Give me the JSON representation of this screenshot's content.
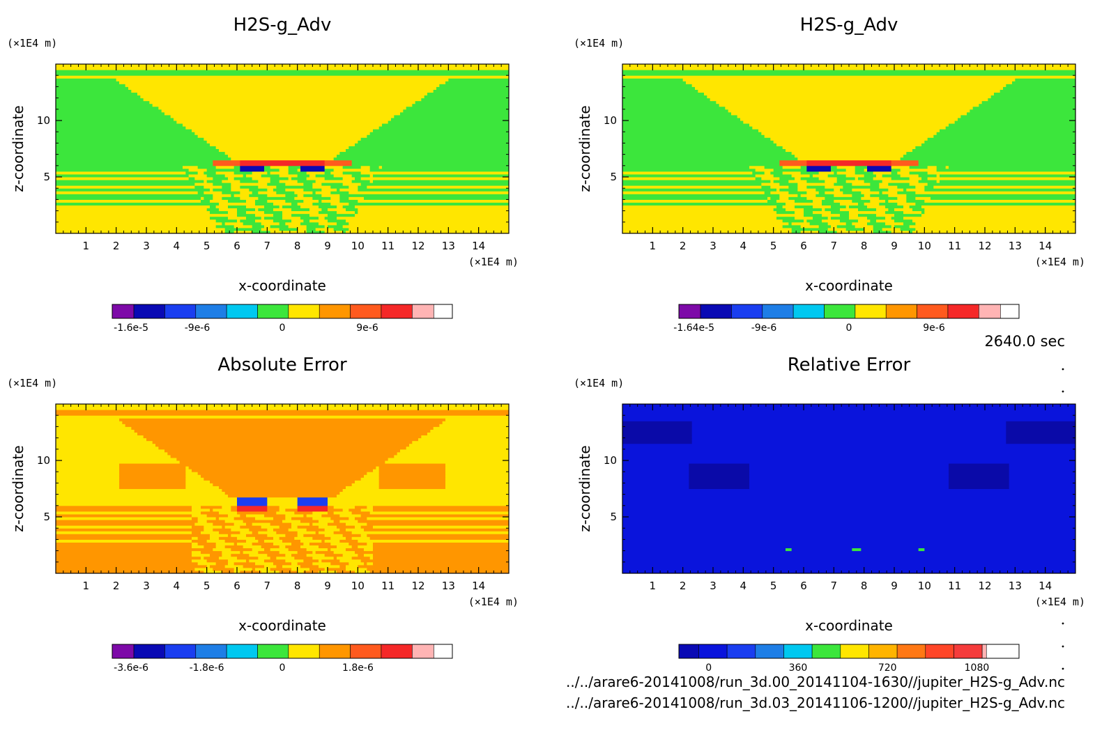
{
  "chart_data": [
    {
      "type": "heatmap",
      "title": "H2S-g_Adv",
      "xlabel": "x-coordinate",
      "ylabel": "z-coordinate",
      "x_unit": "(×1E4 m)",
      "y_unit": "(×1E4 m)",
      "xlim": [
        0,
        15
      ],
      "ylim": [
        0,
        15
      ],
      "xticks": [
        1,
        2,
        3,
        4,
        5,
        6,
        7,
        8,
        9,
        10,
        11,
        12,
        13,
        14
      ],
      "yticks": [
        5,
        10
      ],
      "colorbar": {
        "colors": [
          "#7d0aa8",
          "#0a0ab4",
          "#1a3ef0",
          "#1e7ee6",
          "#00c8f0",
          "#3ce63c",
          "#ffe600",
          "#ff9600",
          "#ff5a1e",
          "#f52828",
          "#ffb4b4"
        ],
        "ticks": [
          {
            "value": -1.6e-05,
            "label": "-1.6e-5"
          },
          {
            "value": -9e-06,
            "label": "-9e-6"
          },
          {
            "value": 0,
            "label": "0"
          },
          {
            "value": 9e-06,
            "label": "9e-6"
          }
        ],
        "range": [
          -1.8e-05,
          1.8e-05
        ]
      },
      "scheme": "field"
    },
    {
      "type": "heatmap",
      "title": "H2S-g_Adv",
      "xlabel": "x-coordinate",
      "ylabel": "z-coordinate",
      "x_unit": "(×1E4 m)",
      "y_unit": "(×1E4 m)",
      "xlim": [
        0,
        15
      ],
      "ylim": [
        0,
        15
      ],
      "xticks": [
        1,
        2,
        3,
        4,
        5,
        6,
        7,
        8,
        9,
        10,
        11,
        12,
        13,
        14
      ],
      "yticks": [
        5,
        10
      ],
      "colorbar": {
        "colors": [
          "#7d0aa8",
          "#0a0ab4",
          "#1a3ef0",
          "#1e7ee6",
          "#00c8f0",
          "#3ce63c",
          "#ffe600",
          "#ff9600",
          "#ff5a1e",
          "#f52828",
          "#ffb4b4"
        ],
        "ticks": [
          {
            "value": -1.64e-05,
            "label": "-1.64e-5"
          },
          {
            "value": -9e-06,
            "label": "-9e-6"
          },
          {
            "value": 0,
            "label": "0"
          },
          {
            "value": 9e-06,
            "label": "9e-6"
          }
        ],
        "range": [
          -1.8e-05,
          1.8e-05
        ]
      },
      "scheme": "field"
    },
    {
      "type": "heatmap",
      "title": "Absolute Error",
      "xlabel": "x-coordinate",
      "ylabel": "z-coordinate",
      "x_unit": "(×1E4 m)",
      "y_unit": "(×1E4 m)",
      "xlim": [
        0,
        15
      ],
      "ylim": [
        0,
        15
      ],
      "xticks": [
        1,
        2,
        3,
        4,
        5,
        6,
        7,
        8,
        9,
        10,
        11,
        12,
        13,
        14
      ],
      "yticks": [
        5,
        10
      ],
      "colorbar": {
        "colors": [
          "#7d0aa8",
          "#0a0ab4",
          "#1a3ef0",
          "#1e7ee6",
          "#00c8f0",
          "#3ce63c",
          "#ffe600",
          "#ff9600",
          "#ff5a1e",
          "#f52828",
          "#ffb4b4"
        ],
        "ticks": [
          {
            "value": -3.6e-06,
            "label": "-3.6e-6"
          },
          {
            "value": -1.8e-06,
            "label": "-1.8e-6"
          },
          {
            "value": 0,
            "label": "0"
          },
          {
            "value": 1.8e-06,
            "label": "1.8e-6"
          }
        ],
        "range": [
          -4.05e-06,
          4.05e-06
        ]
      },
      "scheme": "abs"
    },
    {
      "type": "heatmap",
      "title": "Relative Error",
      "xlabel": "x-coordinate",
      "ylabel": "z-coordinate",
      "x_unit": "(×1E4 m)",
      "y_unit": "(×1E4 m)",
      "xlim": [
        0,
        15
      ],
      "ylim": [
        0,
        15
      ],
      "xticks": [
        1,
        2,
        3,
        4,
        5,
        6,
        7,
        8,
        9,
        10,
        11,
        12,
        13,
        14
      ],
      "yticks": [
        5,
        10
      ],
      "colorbar": {
        "colors": [
          "#0a0ab4",
          "#0a14dc",
          "#1a3ef0",
          "#1e7ee6",
          "#00c8f0",
          "#3ce63c",
          "#ffe600",
          "#ffb400",
          "#ff7814",
          "#ff4628",
          "#f53c3c",
          "#ffb4b4"
        ],
        "ticks": [
          {
            "value": 0,
            "label": "0"
          },
          {
            "value": 360,
            "label": "360"
          },
          {
            "value": 720,
            "label": "720"
          },
          {
            "value": 1080,
            "label": "1080"
          }
        ],
        "range": [
          -120,
          1250
        ]
      },
      "scheme": "rel"
    }
  ],
  "time_label": "2640.0 sec",
  "footer": {
    "line1": "../../arare6-20141008/run_3d.00_20141104-1630//jupiter_H2S-g_Adv.nc",
    "line2": "../../arare6-20141008/run_3d.03_20141106-1200//jupiter_H2S-g_Adv.nc"
  }
}
